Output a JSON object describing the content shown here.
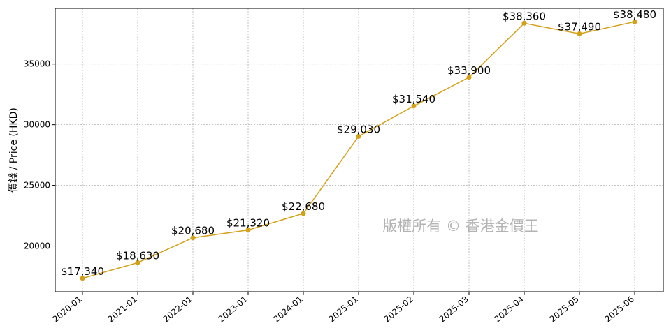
{
  "chart_data": {
    "type": "line",
    "title": "",
    "xlabel": "",
    "ylabel": "價錢 / Price (HKD)",
    "categories": [
      "2020-01",
      "2021-01",
      "2022-01",
      "2023-01",
      "2024-01",
      "2025-01",
      "2025-02",
      "2025-03",
      "2025-04",
      "2025-05",
      "2025-06"
    ],
    "values": [
      17340,
      18630,
      20680,
      21320,
      22680,
      29030,
      31540,
      33900,
      38360,
      37490,
      38480
    ],
    "data_labels": [
      "$17,340",
      "$18,630",
      "$20,680",
      "$21,320",
      "$22,680",
      "$29,030",
      "$31,540",
      "$33,900",
      "$38,360",
      "$37,490",
      "$38,480"
    ],
    "y_ticks": [
      20000,
      25000,
      30000,
      35000
    ],
    "y_tick_labels": [
      "20000",
      "25000",
      "30000",
      "35000"
    ],
    "ylim": [
      16236,
      39584
    ],
    "grid": true,
    "line_color": "#d4a017",
    "watermark": "版權所有 © 香港金價王"
  }
}
